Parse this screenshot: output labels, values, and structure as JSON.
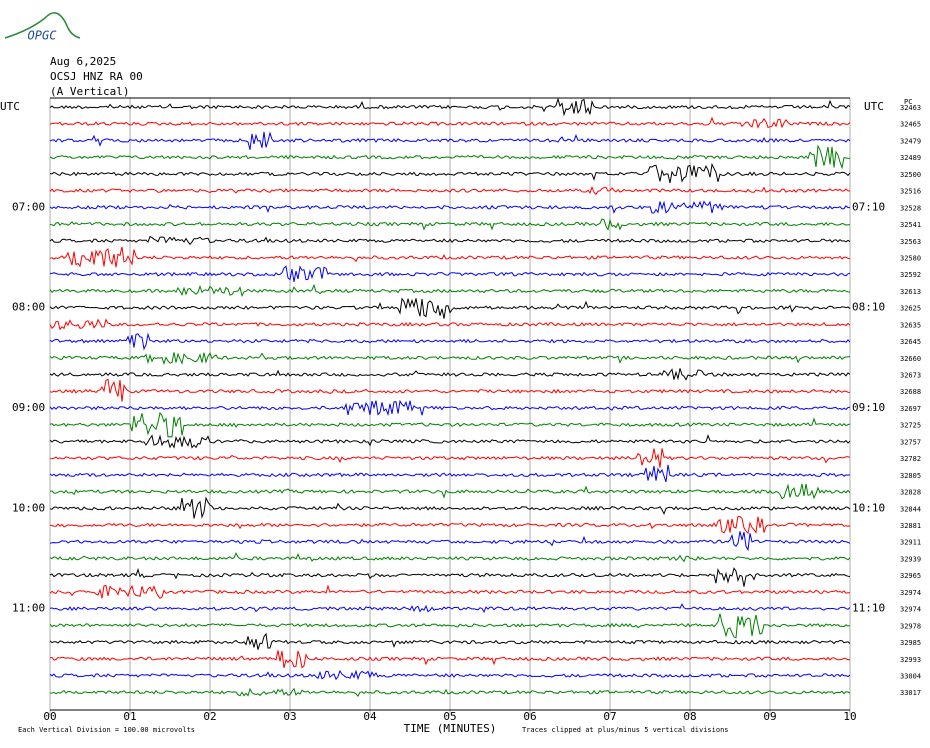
{
  "logo": "OPGC",
  "header": {
    "date": "Aug 6,2025",
    "station": "OCSJ HNZ RA 00",
    "component": "(A Vertical)"
  },
  "plot": {
    "left_axis_label": "UTC",
    "right_axis_label": "UTC",
    "right_column_label": "PC",
    "left_times": [
      "07:00",
      "08:00",
      "09:00",
      "10:00",
      "11:00"
    ],
    "right_times": [
      "07:10",
      "08:10",
      "09:10",
      "10:10",
      "11:10"
    ],
    "trace_colors": [
      "#000000",
      "#ff0000",
      "#0000ff",
      "#008000"
    ],
    "trace_counts": [
      "32463",
      "32465",
      "32479",
      "32489",
      "32500",
      "32516",
      "32528",
      "32541",
      "32563",
      "32580",
      "32592",
      "32613",
      "32625",
      "32635",
      "32645",
      "32660",
      "32673",
      "32688",
      "32697",
      "32725",
      "32757",
      "32782",
      "32805",
      "32828",
      "32844",
      "32881",
      "32911",
      "32939",
      "32965",
      "32974",
      "32974",
      "32978",
      "32985",
      "32993",
      "33004",
      "33017"
    ],
    "x_ticks": [
      "00",
      "01",
      "02",
      "03",
      "04",
      "05",
      "06",
      "07",
      "08",
      "09",
      "10"
    ],
    "x_label": "TIME (MINUTES)"
  },
  "footer": {
    "scale_note": "Each Vertical Division =  100.00 microvolts",
    "clip_note": "Traces clipped at plus/minus 5 vertical divisions"
  }
}
